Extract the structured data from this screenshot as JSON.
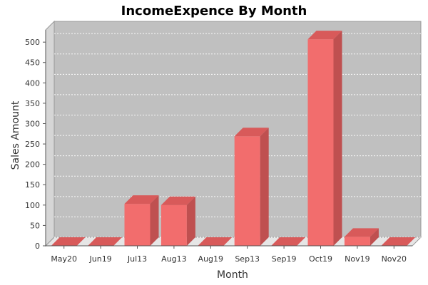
{
  "chart_data": {
    "type": "bar",
    "title": "IncomeExpence By Month",
    "xlabel": "Month",
    "ylabel": "Sales Amount",
    "categories": [
      "May20",
      "Jun19",
      "Jul13",
      "Aug13",
      "Aug19",
      "Sep13",
      "Sep19",
      "Oct19",
      "Nov19",
      "Nov20"
    ],
    "values": [
      0,
      0,
      103,
      100,
      0,
      269,
      0,
      507,
      22,
      0
    ],
    "ylim": [
      0,
      530
    ],
    "yticks": [
      0,
      50,
      100,
      150,
      200,
      250,
      300,
      350,
      400,
      450,
      500
    ],
    "grid": true,
    "legend": "none",
    "colors": {
      "bar_front": "#F26D6D",
      "bar_top": "#D85A5A",
      "bar_side": "#BF5050",
      "plot_back": "#C0C0C0",
      "plot_left_wall": "#D6D6D6",
      "plot_floor": "#E6E6E6",
      "axis": "#555555"
    }
  }
}
